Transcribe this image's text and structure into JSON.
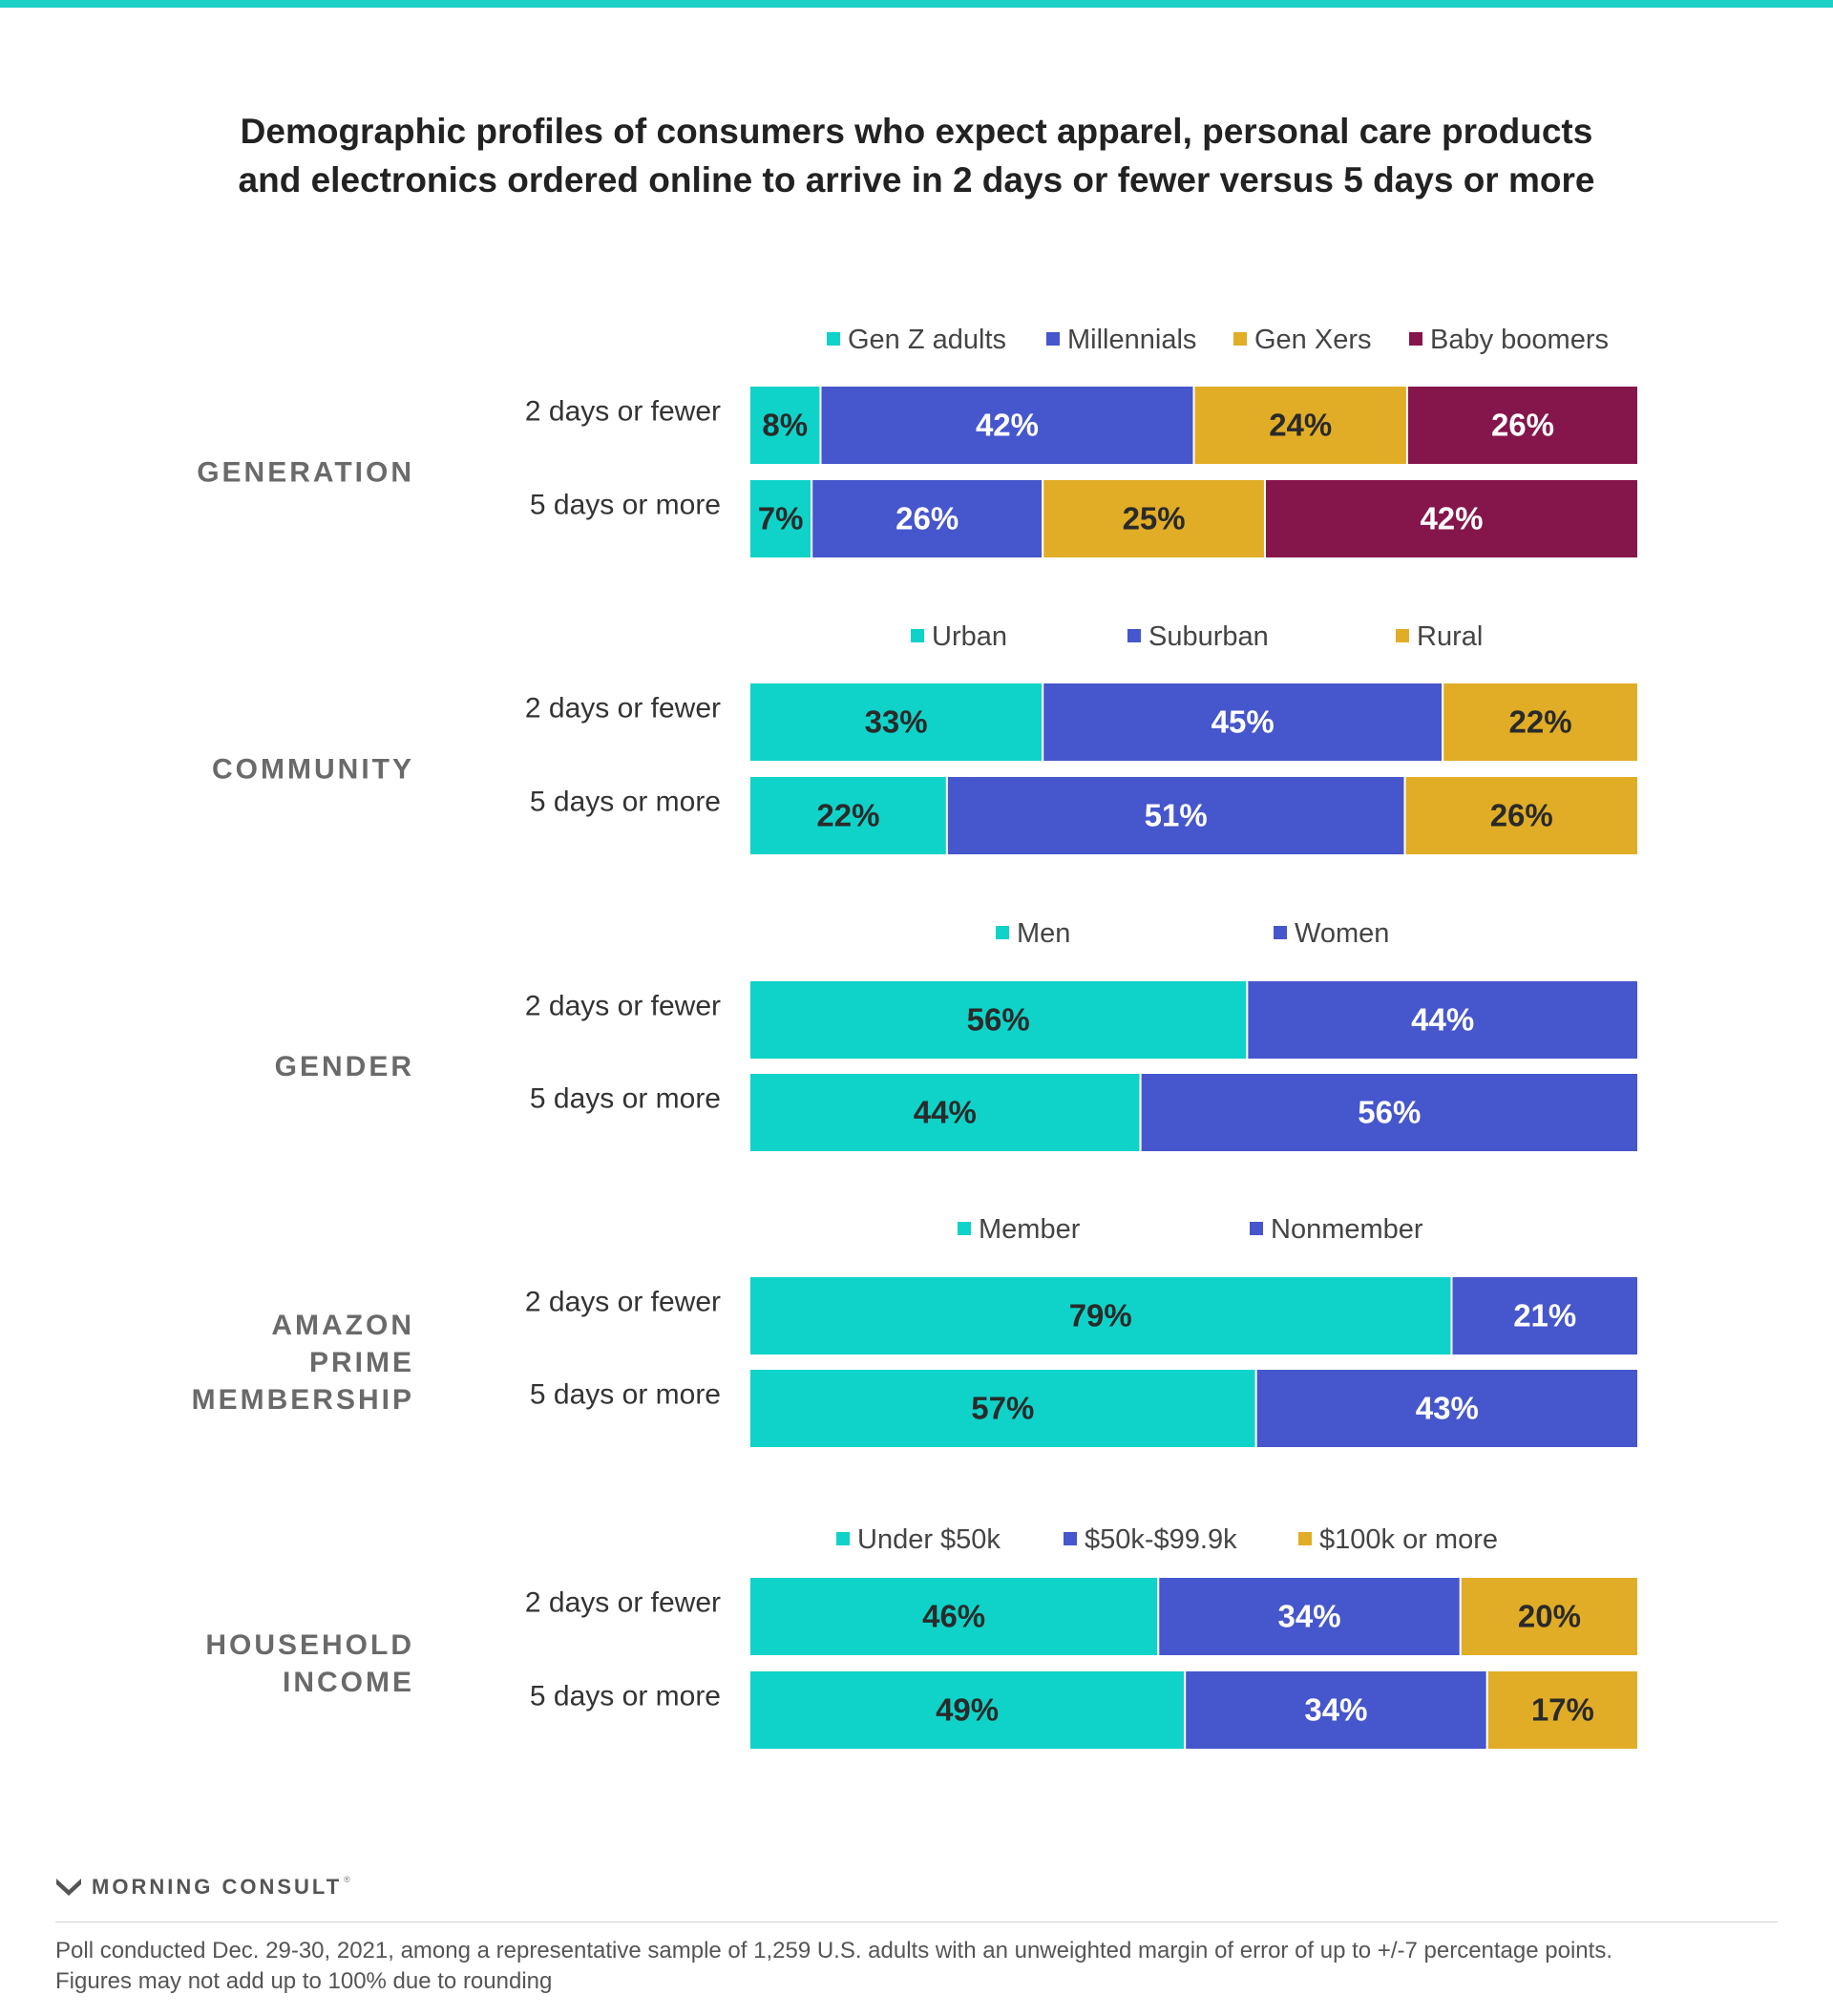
{
  "title": {
    "line1": "Demographic profiles of consumers who expect apparel, personal care products",
    "line2": "and electronics ordered online to arrive in 2 days or fewer versus 5 days or more"
  },
  "colors": {
    "teal": "#0fd3c9",
    "blue": "#4656cc",
    "gold": "#e1ad26",
    "maroon": "#85164b",
    "top_bar": "#1ecfc6"
  },
  "chart_data": {
    "type": "bar",
    "orientation": "horizontal",
    "stacked": true,
    "unit": "%",
    "xlim": [
      0,
      100
    ],
    "grid": false,
    "legend_placement": "above each panel",
    "panels": [
      {
        "label_lines": [
          "GENERATION"
        ],
        "categories": [
          "2 days or fewer",
          "5 days or more"
        ],
        "series": [
          {
            "name": "Gen Z adults",
            "color": "#0fd3c9",
            "values": [
              8,
              7
            ]
          },
          {
            "name": "Millennials",
            "color": "#4656cc",
            "values": [
              42,
              26
            ]
          },
          {
            "name": "Gen Xers",
            "color": "#e1ad26",
            "values": [
              24,
              25
            ]
          },
          {
            "name": "Baby boomers",
            "color": "#85164b",
            "values": [
              26,
              42
            ]
          }
        ]
      },
      {
        "label_lines": [
          "COMMUNITY"
        ],
        "categories": [
          "2 days or fewer",
          "5 days or more"
        ],
        "series": [
          {
            "name": "Urban",
            "color": "#0fd3c9",
            "values": [
              33,
              22
            ]
          },
          {
            "name": "Suburban",
            "color": "#4656cc",
            "values": [
              45,
              51
            ]
          },
          {
            "name": "Rural",
            "color": "#e1ad26",
            "values": [
              22,
              26
            ]
          }
        ]
      },
      {
        "label_lines": [
          "GENDER"
        ],
        "categories": [
          "2 days or fewer",
          "5 days or more"
        ],
        "series": [
          {
            "name": "Men",
            "color": "#0fd3c9",
            "values": [
              56,
              44
            ]
          },
          {
            "name": "Women",
            "color": "#4656cc",
            "values": [
              44,
              56
            ]
          }
        ]
      },
      {
        "label_lines": [
          "AMAZON",
          "PRIME",
          "MEMBERSHIP"
        ],
        "categories": [
          "2 days or fewer",
          "5 days or more"
        ],
        "series": [
          {
            "name": "Member",
            "color": "#0fd3c9",
            "values": [
              79,
              57
            ]
          },
          {
            "name": "Nonmember",
            "color": "#4656cc",
            "values": [
              21,
              43
            ]
          }
        ]
      },
      {
        "label_lines": [
          "HOUSEHOLD",
          "INCOME"
        ],
        "categories": [
          "2 days or fewer",
          "5 days or more"
        ],
        "series": [
          {
            "name": "Under $50k",
            "color": "#0fd3c9",
            "values": [
              46,
              49
            ]
          },
          {
            "name": "$50k-$99.9k",
            "color": "#4656cc",
            "values": [
              34,
              34
            ]
          },
          {
            "name": "$100k or more",
            "color": "#e1ad26",
            "values": [
              20,
              17
            ]
          }
        ]
      }
    ]
  },
  "brand": {
    "logo_icon": "morning-consult-m-logo",
    "name": "MORNING CONSULT",
    "registered": "®"
  },
  "footnote": {
    "line1": "Poll conducted Dec. 29-30, 2021, among a representative sample of 1,259 U.S. adults with an unweighted margin of error of up to +/-7 percentage points.",
    "line2": "Figures may not add up to 100% due to rounding"
  }
}
